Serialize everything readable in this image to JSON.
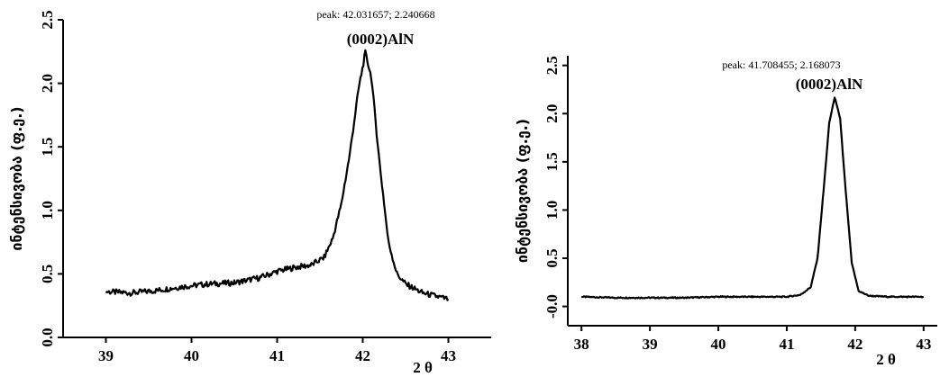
{
  "chart_data": [
    {
      "type": "line",
      "title": "",
      "xlabel": "2 θ",
      "ylabel": "ინტენსივობა (ფ.ე.)",
      "xlim": [
        38.5,
        43.5
      ],
      "ylim": [
        0.0,
        2.5
      ],
      "xticks": [
        "39",
        "40",
        "41",
        "42",
        "43"
      ],
      "yticks": [
        "0.0",
        "0.5",
        "1.0",
        "1.5",
        "2.0",
        "2.5"
      ],
      "grid": false,
      "peak_label": "peak: 42.031657; 2.240668",
      "annotation": "(0002)AlN",
      "series": [
        {
          "x": [
            39.0,
            39.3,
            39.6,
            39.9,
            40.2,
            40.5,
            40.8,
            41.0,
            41.2,
            41.4,
            41.55,
            41.65,
            41.75,
            41.85,
            41.95,
            42.03,
            42.1,
            42.2,
            42.3,
            42.4,
            42.5,
            42.7,
            43.0
          ],
          "y": [
            0.36,
            0.35,
            0.37,
            0.4,
            0.42,
            0.43,
            0.47,
            0.52,
            0.55,
            0.57,
            0.63,
            0.78,
            1.05,
            1.45,
            1.95,
            2.24,
            2.05,
            1.35,
            0.75,
            0.5,
            0.42,
            0.35,
            0.3
          ]
        }
      ]
    },
    {
      "type": "line",
      "title": "",
      "xlabel": "2 θ",
      "ylabel": "ინტენსივობა (ფ.ე.)",
      "xlim": [
        37.8,
        43.2
      ],
      "ylim": [
        -0.2,
        2.6
      ],
      "xticks": [
        "38",
        "39",
        "40",
        "41",
        "42",
        "43"
      ],
      "yticks": [
        "-0.0",
        "0.5",
        "1.0",
        "1.5",
        "2.0",
        "2.5"
      ],
      "grid": false,
      "peak_label": "peak: 41.708455; 2.168073",
      "annotation": "(0002)AlN",
      "series": [
        {
          "x": [
            38.0,
            38.5,
            39.0,
            39.5,
            40.0,
            40.5,
            41.0,
            41.2,
            41.35,
            41.45,
            41.55,
            41.62,
            41.7,
            41.78,
            41.85,
            41.95,
            42.05,
            42.2,
            42.5,
            43.0
          ],
          "y": [
            0.1,
            0.09,
            0.09,
            0.09,
            0.1,
            0.1,
            0.1,
            0.12,
            0.2,
            0.5,
            1.3,
            1.9,
            2.17,
            1.95,
            1.3,
            0.45,
            0.16,
            0.11,
            0.1,
            0.1
          ]
        }
      ]
    }
  ]
}
